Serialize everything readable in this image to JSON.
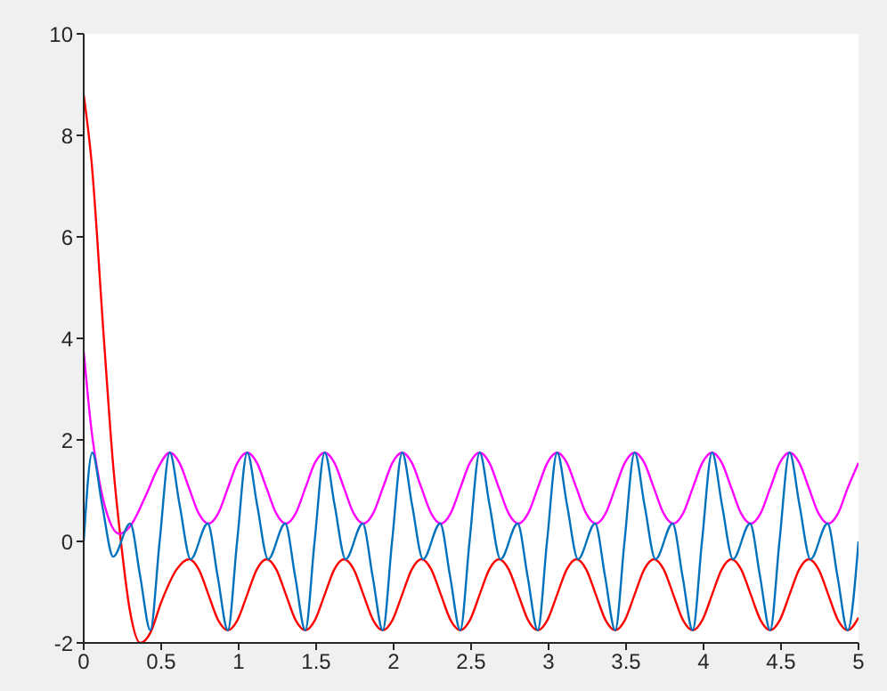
{
  "chart_data": {
    "type": "line",
    "xlim": [
      0,
      5
    ],
    "xticks": [
      0,
      0.5,
      1,
      1.5,
      2,
      2.5,
      3,
      3.5,
      4,
      4.5,
      5
    ],
    "ylim": [
      -2,
      10
    ],
    "yticks": [
      -2,
      0,
      2,
      4,
      6,
      8,
      10
    ],
    "grid": false,
    "legend": false,
    "marker": "none",
    "line_style": "solid",
    "series": [
      {
        "color": "#ff0000",
        "x": [
          0,
          0.05,
          0.13,
          0.19,
          0.24,
          0.3,
          0.365,
          0.43,
          0.5,
          0.6,
          0.68,
          0.7425,
          0.805,
          0.8675,
          0.93,
          0.9925,
          1.055,
          1.1175,
          1.18,
          1.2425,
          1.305,
          1.3675,
          1.43,
          1.4925,
          1.555,
          1.6175,
          1.68,
          1.7425,
          1.805,
          1.8675,
          1.93,
          1.9925,
          2.055,
          2.1175,
          2.18,
          2.2425,
          2.305,
          2.3675,
          2.43,
          2.4925,
          2.555,
          2.6175,
          2.68,
          2.7425,
          2.805,
          2.8675,
          2.93,
          2.9925,
          3.055,
          3.1175,
          3.18,
          3.2425,
          3.305,
          3.3675,
          3.43,
          3.4925,
          3.555,
          3.6175,
          3.68,
          3.7425,
          3.805,
          3.8675,
          3.93,
          3.9925,
          4.055,
          4.1175,
          4.18,
          4.2425,
          4.305,
          4.3675,
          4.43,
          4.4925,
          4.555,
          4.6175,
          4.68,
          4.7425,
          4.805,
          4.8675,
          4.93,
          5
        ],
        "values": [
          8.8,
          7.5,
          4,
          1.5,
          0,
          -1.4,
          -2,
          -1.8,
          -1.2,
          -0.55,
          -0.35,
          -0.55,
          -1.05,
          -1.55,
          -1.75,
          -1.55,
          -1.05,
          -0.55,
          -0.35,
          -0.55,
          -1.05,
          -1.55,
          -1.75,
          -1.55,
          -1.05,
          -0.55,
          -0.35,
          -0.55,
          -1.05,
          -1.55,
          -1.75,
          -1.55,
          -1.05,
          -0.55,
          -0.35,
          -0.55,
          -1.05,
          -1.55,
          -1.75,
          -1.55,
          -1.05,
          -0.55,
          -0.35,
          -0.55,
          -1.05,
          -1.55,
          -1.75,
          -1.55,
          -1.05,
          -0.55,
          -0.35,
          -0.55,
          -1.05,
          -1.55,
          -1.75,
          -1.55,
          -1.05,
          -0.55,
          -0.35,
          -0.55,
          -1.05,
          -1.55,
          -1.75,
          -1.55,
          -1.05,
          -0.55,
          -0.35,
          -0.55,
          -1.05,
          -1.55,
          -1.75,
          -1.55,
          -1.05,
          -0.55,
          -0.35,
          -0.55,
          -1.05,
          -1.55,
          -1.75,
          -1.5
        ]
      },
      {
        "color": "#ff00ff",
        "x": [
          0,
          0.05,
          0.1,
          0.15,
          0.23,
          0.3,
          0.4,
          0.48,
          0.555,
          0.6175,
          0.68,
          0.7425,
          0.805,
          0.8675,
          0.93,
          0.9925,
          1.055,
          1.1175,
          1.18,
          1.2425,
          1.305,
          1.3675,
          1.43,
          1.4925,
          1.555,
          1.6175,
          1.68,
          1.7425,
          1.805,
          1.8675,
          1.93,
          1.9925,
          2.055,
          2.1175,
          2.18,
          2.2425,
          2.305,
          2.3675,
          2.43,
          2.4925,
          2.555,
          2.6175,
          2.68,
          2.7425,
          2.805,
          2.8675,
          2.93,
          2.9925,
          3.055,
          3.1175,
          3.18,
          3.2425,
          3.305,
          3.3675,
          3.43,
          3.4925,
          3.555,
          3.6175,
          3.68,
          3.7425,
          3.805,
          3.8675,
          3.93,
          3.9925,
          4.055,
          4.1175,
          4.18,
          4.2425,
          4.305,
          4.3675,
          4.43,
          4.4925,
          4.555,
          4.6175,
          4.68,
          4.7425,
          4.805,
          4.8675,
          4.93,
          5
        ],
        "values": [
          3.75,
          2.2,
          1.2,
          0.55,
          0.15,
          0.3,
          0.9,
          1.45,
          1.75,
          1.55,
          1.05,
          0.55,
          0.35,
          0.55,
          1.05,
          1.55,
          1.75,
          1.55,
          1.05,
          0.55,
          0.35,
          0.55,
          1.05,
          1.55,
          1.75,
          1.55,
          1.05,
          0.55,
          0.35,
          0.55,
          1.05,
          1.55,
          1.75,
          1.55,
          1.05,
          0.55,
          0.35,
          0.55,
          1.05,
          1.55,
          1.75,
          1.55,
          1.05,
          0.55,
          0.35,
          0.55,
          1.05,
          1.55,
          1.75,
          1.55,
          1.05,
          0.55,
          0.35,
          0.55,
          1.05,
          1.55,
          1.75,
          1.55,
          1.05,
          0.55,
          0.35,
          0.55,
          1.05,
          1.55,
          1.75,
          1.55,
          1.05,
          0.55,
          0.35,
          0.55,
          1.05,
          1.55,
          1.75,
          1.55,
          1.05,
          0.55,
          0.35,
          0.55,
          1.05,
          1.55
        ]
      },
      {
        "color": "#0072bd",
        "x": [
          0,
          0.055,
          0.12,
          0.19,
          0.3,
          0.365,
          0.43,
          0.49,
          0.555,
          0.62,
          0.69,
          0.8,
          0.865,
          0.93,
          0.99,
          1.055,
          1.12,
          1.19,
          1.3,
          1.365,
          1.43,
          1.49,
          1.555,
          1.62,
          1.69,
          1.8,
          1.865,
          1.93,
          1.99,
          2.055,
          2.12,
          2.19,
          2.3,
          2.365,
          2.43,
          2.49,
          2.555,
          2.62,
          2.69,
          2.8,
          2.865,
          2.93,
          2.99,
          3.055,
          3.12,
          3.19,
          3.3,
          3.365,
          3.43,
          3.49,
          3.555,
          3.62,
          3.69,
          3.8,
          3.865,
          3.93,
          3.99,
          4.055,
          4.12,
          4.19,
          4.3,
          4.365,
          4.43,
          4.49,
          4.555,
          4.62,
          4.69,
          4.8,
          4.865,
          4.93,
          5
        ],
        "values": [
          0,
          1.75,
          0.7,
          -0.3,
          0.35,
          -0.7,
          -1.75,
          0,
          1.75,
          0.7,
          -0.35,
          0.35,
          -0.7,
          -1.75,
          0,
          1.75,
          0.7,
          -0.35,
          0.35,
          -0.7,
          -1.75,
          0,
          1.75,
          0.7,
          -0.35,
          0.35,
          -0.7,
          -1.75,
          0,
          1.75,
          0.7,
          -0.35,
          0.35,
          -0.7,
          -1.75,
          0,
          1.75,
          0.7,
          -0.35,
          0.35,
          -0.7,
          -1.75,
          0,
          1.75,
          0.7,
          -0.35,
          0.35,
          -0.7,
          -1.75,
          0,
          1.75,
          0.7,
          -0.35,
          0.35,
          -0.7,
          -1.75,
          0,
          1.75,
          0.7,
          -0.35,
          0.35,
          -0.7,
          -1.75,
          0,
          1.75,
          0.7,
          -0.35,
          0.35,
          -0.7,
          -1.75,
          0
        ]
      }
    ]
  }
}
